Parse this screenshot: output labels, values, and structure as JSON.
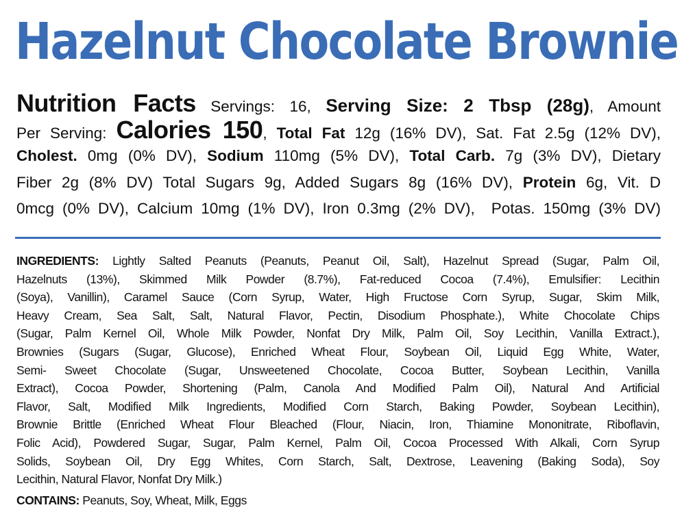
{
  "title": "Hazelnut Chocolate Brownie",
  "brand_color": "#3a6db6",
  "nutrition_lines": [
    [
      {
        "t": "Nutrition Facts",
        "s": "big"
      },
      {
        "t": " Servings: 16, ",
        "s": ""
      },
      {
        "t": "Serving Size: 2 Tbsp (28g)",
        "s": "mid"
      },
      {
        "t": ", Amount",
        "s": ""
      }
    ],
    [
      {
        "t": "Per Serving: ",
        "s": ""
      },
      {
        "t": "Calories 150",
        "s": "big"
      },
      {
        "t": ", ",
        "s": ""
      },
      {
        "t": "Total Fat",
        "s": "b"
      },
      {
        "t": " 12g (16% DV), Sat. Fat 2.5g (12% DV),",
        "s": ""
      }
    ],
    [
      {
        "t": "Cholest.",
        "s": "b"
      },
      {
        "t": " 0mg (0% DV), ",
        "s": ""
      },
      {
        "t": "Sodium",
        "s": "b"
      },
      {
        "t": " 110mg (5% DV), ",
        "s": ""
      },
      {
        "t": "Total Carb.",
        "s": "b"
      },
      {
        "t": " 7g (3% DV), Dietary",
        "s": ""
      }
    ],
    [
      {
        "t": "Fiber 2g (8% DV) Total Sugars 9g, Added Sugars 8g (16% DV), ",
        "s": ""
      },
      {
        "t": "Protein",
        "s": "b"
      },
      {
        "t": " 6g, Vit. D",
        "s": ""
      }
    ],
    [
      {
        "t": "0mcg (0% DV), Calcium 10mg (1% DV), Iron 0.3mg (2% DV),  Potas. 150mg (3% DV)",
        "s": ""
      }
    ]
  ],
  "ingredients": {
    "label": "INGREDIENTS:",
    "lines": [
      " Lightly Salted Peanuts (Peanuts, Peanut Oil, Salt), Hazelnut Spread (Sugar, Palm Oil,",
      "Hazelnuts (13%), Skimmed Milk Powder (8.7%), Fat-reduced Cocoa (7.4%), Emulsifier: Lecithin",
      "(Soya), Vanillin), Caramel Sauce (Corn Syrup, Water, High Fructose Corn Syrup, Sugar, Skim Milk,",
      "Heavy Cream, Sea Salt, Salt, Natural Flavor, Pectin, Disodium Phosphate.), White Chocolate Chips",
      "(Sugar, Palm Kernel Oil, Whole Milk Powder, Nonfat Dry Milk, Palm Oil, Soy Lecithin, Vanilla Extract.),",
      "Brownies (Sugars (Sugar, Glucose), Enriched Wheat Flour, Soybean Oil, Liquid Egg White, Water,",
      "Semi- Sweet Chocolate (Sugar, Unsweetened Chocolate, Cocoa Butter, Soybean Lecithin, Vanilla",
      "Extract), Cocoa Powder, Shortening (Palm, Canola And Modified Palm Oil), Natural And Artificial",
      "Flavor, Salt, Modified Milk Ingredients, Modified Corn Starch, Baking Powder, Soybean Lecithin),",
      "Brownie Brittle (Enriched Wheat Flour Bleached (Flour, Niacin, Iron, Thiamine Mononitrate, Riboflavin,",
      "Folic Acid), Powdered Sugar, Sugar, Palm Kernel, Palm Oil, Cocoa Processed With Alkali, Corn Syrup",
      "Solids, Soybean Oil, Dry Egg Whites, Corn Starch, Salt, Dextrose, Leavening (Baking Soda), Soy",
      "Lecithin, Natural Flavor, Nonfat Dry Milk.)"
    ]
  },
  "contains": {
    "label": "CONTAINS:",
    "text": " Peanuts, Soy, Wheat, Milk, Eggs"
  }
}
